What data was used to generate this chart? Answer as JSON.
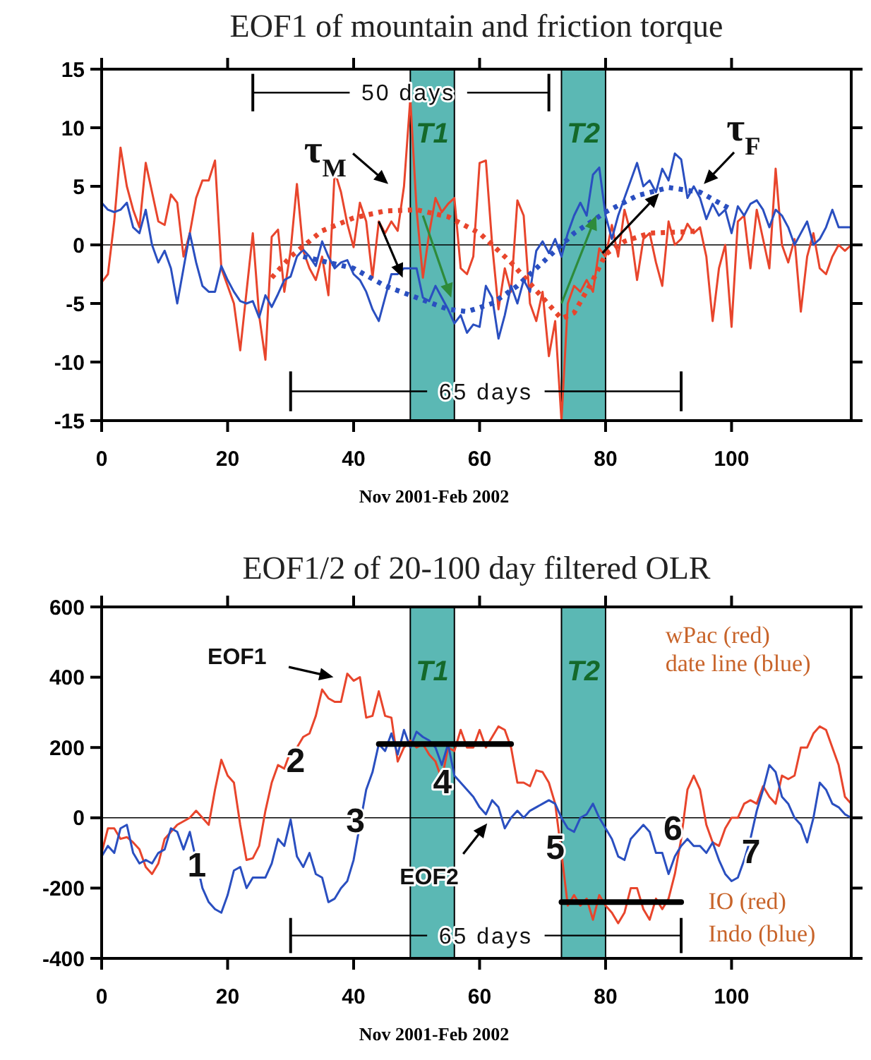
{
  "chart_data": [
    {
      "type": "line",
      "title": "EOF1 of mountain and friction torque",
      "xlabel": "Nov 2001-Feb 2002",
      "x": [
        0,
        1,
        2,
        3,
        4,
        5,
        6,
        7,
        8,
        9,
        10,
        11,
        12,
        13,
        14,
        15,
        16,
        17,
        18,
        19,
        20,
        21,
        22,
        23,
        24,
        25,
        26,
        27,
        28,
        29,
        30,
        31,
        32,
        33,
        34,
        35,
        36,
        37,
        38,
        39,
        40,
        41,
        42,
        43,
        44,
        45,
        46,
        47,
        48,
        49,
        50,
        51,
        52,
        53,
        54,
        55,
        56,
        57,
        58,
        59,
        60,
        61,
        62,
        63,
        64,
        65,
        66,
        67,
        68,
        69,
        70,
        71,
        72,
        73,
        74,
        75,
        76,
        77,
        78,
        79,
        80,
        81,
        82,
        83,
        84,
        85,
        86,
        87,
        88,
        89,
        90,
        91,
        92,
        93,
        94,
        95,
        96,
        97,
        98,
        99,
        100,
        101,
        102,
        103,
        104,
        105,
        106,
        107,
        108,
        109,
        110,
        111,
        112,
        113,
        114,
        115,
        116,
        117,
        118,
        119
      ],
      "xlim": [
        0,
        119
      ],
      "xticks": [
        0,
        20,
        40,
        60,
        80,
        100
      ],
      "ylim": [
        -15,
        15
      ],
      "yticks": [
        -15,
        -10,
        -5,
        0,
        5,
        10,
        15
      ],
      "series": [
        {
          "color": "#e8452c",
          "values": [
            -3.2,
            -2.5,
            2,
            8.3,
            5,
            3,
            1.5,
            7,
            4.5,
            2,
            1.7,
            4.3,
            3.6,
            -1,
            1,
            4,
            5.5,
            5.5,
            7.2,
            -2,
            -3.5,
            -5,
            -9,
            -4,
            1,
            -6,
            -9.8,
            0.7,
            1.3,
            -4,
            -0.5,
            5.2,
            -0.5,
            -2,
            -3,
            -1,
            -4.3,
            6.3,
            4.5,
            1.8,
            -0.2,
            3.6,
            2,
            -2.8,
            2,
            1,
            2,
            1.2,
            5,
            12.5,
            3,
            -2.8,
            1,
            4,
            2.8,
            3.5,
            4,
            -2,
            -2.5,
            -1,
            7,
            7.2,
            0,
            -5.5,
            -2,
            -4,
            3.8,
            2.5,
            -5,
            -6.5,
            -4,
            -9.5,
            -6.5,
            -15,
            -5,
            -3.5,
            -4,
            -3,
            -4,
            -0.3,
            -1,
            1.7,
            -1,
            3,
            1,
            -3,
            0.5,
            1,
            -1.5,
            -3.5,
            2,
            0,
            0.5,
            1.8,
            1,
            1.5,
            -1,
            -6.5,
            -2,
            0,
            -7,
            2,
            2.5,
            -2,
            3,
            0.5,
            -2,
            6.5,
            0,
            -1.5,
            0.5,
            -5.7,
            -1,
            1,
            -2,
            -2.5,
            -1,
            0,
            -0.5,
            0
          ]
        },
        {
          "color": "#2a4fc0",
          "values": [
            3.6,
            3,
            2.8,
            3,
            3.6,
            1.5,
            1,
            3,
            0,
            -1.5,
            -0.5,
            -2,
            -5,
            -2,
            1,
            -1.5,
            -3.5,
            -4,
            -4,
            -1.8,
            -3,
            -4,
            -4.8,
            -5,
            -4.8,
            -6.2,
            -4.3,
            -5.3,
            -4.2,
            -3,
            -2.7,
            -1,
            -0.4,
            -1,
            -1.8,
            0.3,
            -1,
            -2,
            -1.5,
            -1.3,
            -2.5,
            -3,
            -4,
            -5.5,
            -6.5,
            -4.5,
            -2.5,
            -2.5,
            -2,
            -2,
            -2,
            -4.5,
            -4.8,
            -3.5,
            -4.5,
            -5.5,
            -6.7,
            -6,
            -7.5,
            -6.8,
            -7,
            -3.5,
            -4.5,
            -8,
            -6,
            -3.5,
            -5,
            -3,
            -4,
            -0.5,
            0.3,
            -0.7,
            0.5,
            -1,
            1,
            2.5,
            3.6,
            2.5,
            6,
            6.6,
            2.5,
            0.5,
            2.5,
            4,
            5.5,
            7,
            5,
            5.5,
            4.5,
            6.5,
            5.5,
            7.8,
            7.3,
            4,
            5,
            4,
            2.2,
            3.5,
            2.5,
            3,
            1,
            3.3,
            2.5,
            3.5,
            3.8,
            3,
            1.5,
            3,
            2.5,
            1.5,
            0,
            1,
            2,
            0,
            0.5,
            1.5,
            3,
            1.5,
            1.5,
            1.5
          ]
        },
        {
          "color": "#e8452c",
          "line_style": "dotted",
          "x": [
            27,
            30,
            35,
            40,
            45,
            50,
            55,
            60,
            65,
            70,
            73,
            75,
            78,
            80,
            83,
            87,
            92,
            95
          ],
          "values": [
            -2.8,
            -1,
            1.2,
            2.3,
            2.9,
            3,
            2.4,
            1,
            -1.5,
            -4.5,
            -6.3,
            -5.8,
            -3,
            -0.8,
            0.3,
            1,
            1.1,
            1.2
          ]
        },
        {
          "color": "#2a4fc0",
          "line_style": "dotted",
          "x": [
            32,
            40,
            45,
            50,
            55,
            58,
            62,
            66,
            70,
            75,
            80,
            85,
            90,
            95,
            100
          ],
          "values": [
            -1,
            -2,
            -3.5,
            -4.5,
            -5.5,
            -5.7,
            -5,
            -3.5,
            -1.5,
            1,
            2.8,
            4.2,
            4.9,
            4.5,
            3
          ]
        }
      ],
      "bands": [
        {
          "axis": "x",
          "from": 49,
          "to": 56,
          "label": "T1",
          "color": "#5bb8b4"
        },
        {
          "axis": "x",
          "from": 73,
          "to": 80,
          "label": "T2",
          "color": "#5bb8b4"
        }
      ],
      "ref_lines": [
        {
          "axis": "y",
          "value": 0,
          "color": "#000000"
        }
      ],
      "annotations": [
        "τ$_{M}$",
        "τ$_{F}$",
        "50 days",
        "65 days"
      ]
    },
    {
      "type": "line",
      "title": "EOF1/2 of 20-100 day filtered OLR",
      "xlabel": "Nov 2001-Feb 2002",
      "x": [
        0,
        1,
        2,
        3,
        4,
        5,
        6,
        7,
        8,
        9,
        10,
        11,
        12,
        13,
        14,
        15,
        16,
        17,
        18,
        19,
        20,
        21,
        22,
        23,
        24,
        25,
        26,
        27,
        28,
        29,
        30,
        31,
        32,
        33,
        34,
        35,
        36,
        37,
        38,
        39,
        40,
        41,
        42,
        43,
        44,
        45,
        46,
        47,
        48,
        49,
        50,
        51,
        52,
        53,
        54,
        55,
        56,
        57,
        58,
        59,
        60,
        61,
        62,
        63,
        64,
        65,
        66,
        67,
        68,
        69,
        70,
        71,
        72,
        73,
        74,
        75,
        76,
        77,
        78,
        79,
        80,
        81,
        82,
        83,
        84,
        85,
        86,
        87,
        88,
        89,
        90,
        91,
        92,
        93,
        94,
        95,
        96,
        97,
        98,
        99,
        100,
        101,
        102,
        103,
        104,
        105,
        106,
        107,
        108,
        109,
        110,
        111,
        112,
        113,
        114,
        115,
        116,
        117,
        118,
        119
      ],
      "xlim": [
        0,
        119
      ],
      "xticks": [
        0,
        20,
        40,
        60,
        80,
        100
      ],
      "ylim": [
        -400,
        600
      ],
      "yticks": [
        -400,
        -200,
        0,
        200,
        400,
        600
      ],
      "series": [
        {
          "color": "#e8452c",
          "values": [
            -100,
            -30,
            -30,
            -60,
            -55,
            -70,
            -90,
            -140,
            -160,
            -130,
            -60,
            -40,
            -20,
            -10,
            0,
            20,
            0,
            -20,
            80,
            165,
            120,
            100,
            -20,
            -120,
            -115,
            -80,
            20,
            100,
            150,
            140,
            190,
            200,
            230,
            240,
            290,
            365,
            340,
            330,
            330,
            410,
            390,
            400,
            285,
            290,
            360,
            290,
            285,
            160,
            200,
            220,
            200,
            210,
            180,
            160,
            110,
            200,
            190,
            250,
            200,
            200,
            250,
            200,
            230,
            260,
            250,
            200,
            100,
            100,
            90,
            135,
            130,
            100,
            40,
            -100,
            -250,
            -220,
            -250,
            -230,
            -290,
            -220,
            -250,
            -270,
            -300,
            -270,
            -200,
            -200,
            -260,
            -290,
            -230,
            -260,
            -230,
            -160,
            -60,
            80,
            120,
            80,
            -20,
            -70,
            -80,
            -30,
            0,
            0,
            40,
            50,
            40,
            90,
            60,
            40,
            120,
            110,
            120,
            200,
            200,
            240,
            260,
            250,
            200,
            150,
            60,
            40
          ]
        },
        {
          "color": "#2a4fc0",
          "values": [
            -110,
            -80,
            -100,
            -30,
            -20,
            -100,
            -130,
            -120,
            -130,
            -100,
            -90,
            -30,
            -40,
            -90,
            -40,
            -120,
            -200,
            -240,
            -260,
            -270,
            -220,
            -150,
            -140,
            -200,
            -170,
            -170,
            -170,
            -130,
            -60,
            -80,
            -5,
            -110,
            -140,
            -100,
            -160,
            -170,
            -240,
            -230,
            -200,
            -180,
            -120,
            -20,
            80,
            130,
            210,
            190,
            240,
            180,
            250,
            200,
            245,
            230,
            220,
            200,
            150,
            210,
            120,
            100,
            80,
            60,
            30,
            10,
            50,
            30,
            -30,
            0,
            20,
            0,
            20,
            30,
            40,
            50,
            40,
            0,
            -30,
            -40,
            0,
            10,
            40,
            0,
            -30,
            -60,
            -110,
            -120,
            -60,
            -40,
            -20,
            -40,
            -100,
            -100,
            -160,
            -110,
            -80,
            -60,
            -80,
            -80,
            -100,
            -70,
            -120,
            -160,
            -180,
            -170,
            -120,
            -60,
            20,
            80,
            150,
            130,
            60,
            40,
            0,
            -20,
            -70,
            0,
            100,
            80,
            40,
            30,
            10,
            0
          ]
        },
        {
          "color": "#000000",
          "x": [
            44,
            65
          ],
          "values": [
            210,
            210
          ]
        },
        {
          "color": "#000000",
          "x": [
            73,
            92
          ],
          "values": [
            -240,
            -240
          ]
        }
      ],
      "bands": [
        {
          "axis": "x",
          "from": 49,
          "to": 56,
          "label": "T1",
          "color": "#5bb8b4"
        },
        {
          "axis": "x",
          "from": 73,
          "to": 80,
          "label": "T2",
          "color": "#5bb8b4"
        }
      ],
      "ref_lines": [
        {
          "axis": "y",
          "value": 0,
          "color": "#000000"
        }
      ],
      "annotations": [
        "EOF1",
        "EOF2",
        "1",
        "2",
        "3",
        "4",
        "5",
        "6",
        "7",
        "wPac (red)",
        "date line (blue)",
        "IO (red)",
        "Indo (blue)",
        "65 days"
      ]
    }
  ]
}
